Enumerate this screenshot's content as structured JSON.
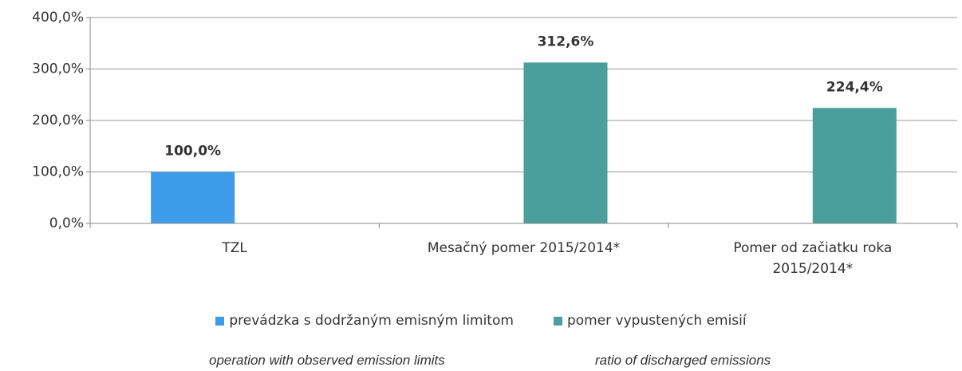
{
  "chart_data": {
    "type": "bar",
    "categories": [
      "TZL",
      "Mesačný pomer  2015/2014*",
      "Pomer od začiatku roka 2015/2014*"
    ],
    "series": [
      {
        "name": "prevádzka s dodržaným emisným limitom",
        "color": "#3d9be9",
        "values": [
          100,
          null,
          null
        ],
        "value_labels": [
          "100,0%",
          null,
          null
        ]
      },
      {
        "name": "pomer vypustených emisií",
        "color": "#4a9e9c",
        "values": [
          null,
          312.6,
          224.4
        ],
        "value_labels": [
          null,
          "312,6%",
          "224,4%"
        ]
      }
    ],
    "ylim": [
      0,
      400
    ],
    "yticks": [
      {
        "value": 0,
        "label": "0,0%"
      },
      {
        "value": 100,
        "label": "100,0%"
      },
      {
        "value": 200,
        "label": "200,0%"
      },
      {
        "value": 300,
        "label": "300,0%"
      },
      {
        "value": 400,
        "label": "400,0%"
      }
    ],
    "grid": true,
    "annotations": [
      "operation with observed emission limits",
      "ratio of discharged emissions"
    ]
  }
}
